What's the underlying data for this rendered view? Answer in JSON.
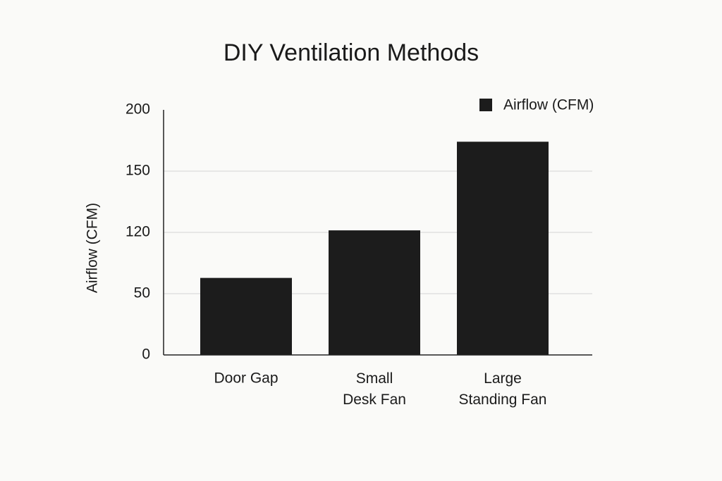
{
  "chart_data": {
    "type": "bar",
    "title": "DIY Ventilation Methods",
    "y_label": "Airflow (CFM)",
    "categories": [
      "Door Gap",
      "Small Desk Fan",
      "Large Standing Fan"
    ],
    "series": [
      {
        "name": "Airflow (CFM)",
        "color": "#1c1c1c",
        "values": [
          68,
          121,
          174
        ]
      }
    ],
    "ylim": [
      0,
      200
    ],
    "yticks": [
      0,
      50,
      120,
      150,
      200
    ],
    "grid": true,
    "legend": "top-right"
  }
}
